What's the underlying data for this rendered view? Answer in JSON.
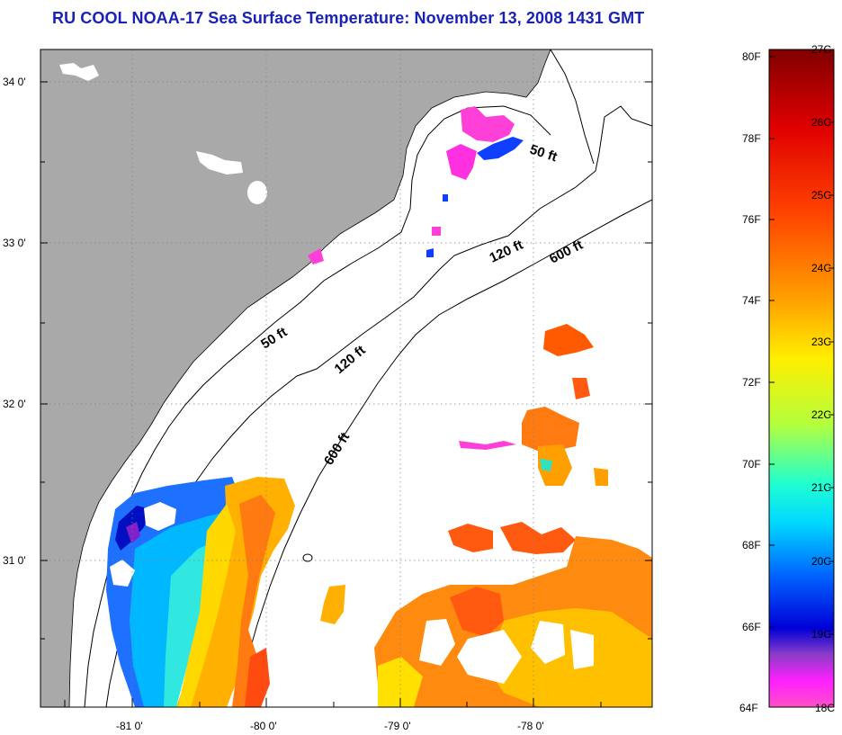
{
  "title": "RU COOL  NOAA-17  Sea Surface Temperature:  November 13, 2008 1431 GMT",
  "map": {
    "lat_labels": [
      "34 0'",
      "33 0'",
      "32 0'",
      "31 0'"
    ],
    "lon_labels": [
      "-81 0'",
      "-80 0'",
      "-79 0'",
      "-78 0'"
    ],
    "contour_labels": [
      {
        "text": "50 ft",
        "name": "contour-label-50ft-north"
      },
      {
        "text": "120 ft",
        "name": "contour-label-120ft-north"
      },
      {
        "text": "600 ft",
        "name": "contour-label-600ft-north"
      },
      {
        "text": "50 ft",
        "name": "contour-label-50ft-south"
      },
      {
        "text": "120 ft",
        "name": "contour-label-120ft-south"
      },
      {
        "text": "600 ft",
        "name": "contour-label-600ft-south"
      }
    ],
    "land_color": "#a9a9a9",
    "ocean_color": "#ffffff"
  },
  "colorbar": {
    "fahrenheit_labels": [
      "80F",
      "78F",
      "76F",
      "74F",
      "72F",
      "70F",
      "68F",
      "66F",
      "64F"
    ],
    "celsius_labels": [
      "27C",
      "26C",
      "25C",
      "24C",
      "23C",
      "22C",
      "21C",
      "20C",
      "19C",
      "18C"
    ],
    "range_f": [
      64,
      80
    ],
    "colors_top_to_bottom": [
      "#7a0000",
      "#e60000",
      "#ff6a00",
      "#ffcc00",
      "#ffff00",
      "#7dff7d",
      "#00ffff",
      "#0070ff",
      "#0000d0",
      "#9a3cc8",
      "#ff00ff",
      "#ff4fd0"
    ]
  }
}
